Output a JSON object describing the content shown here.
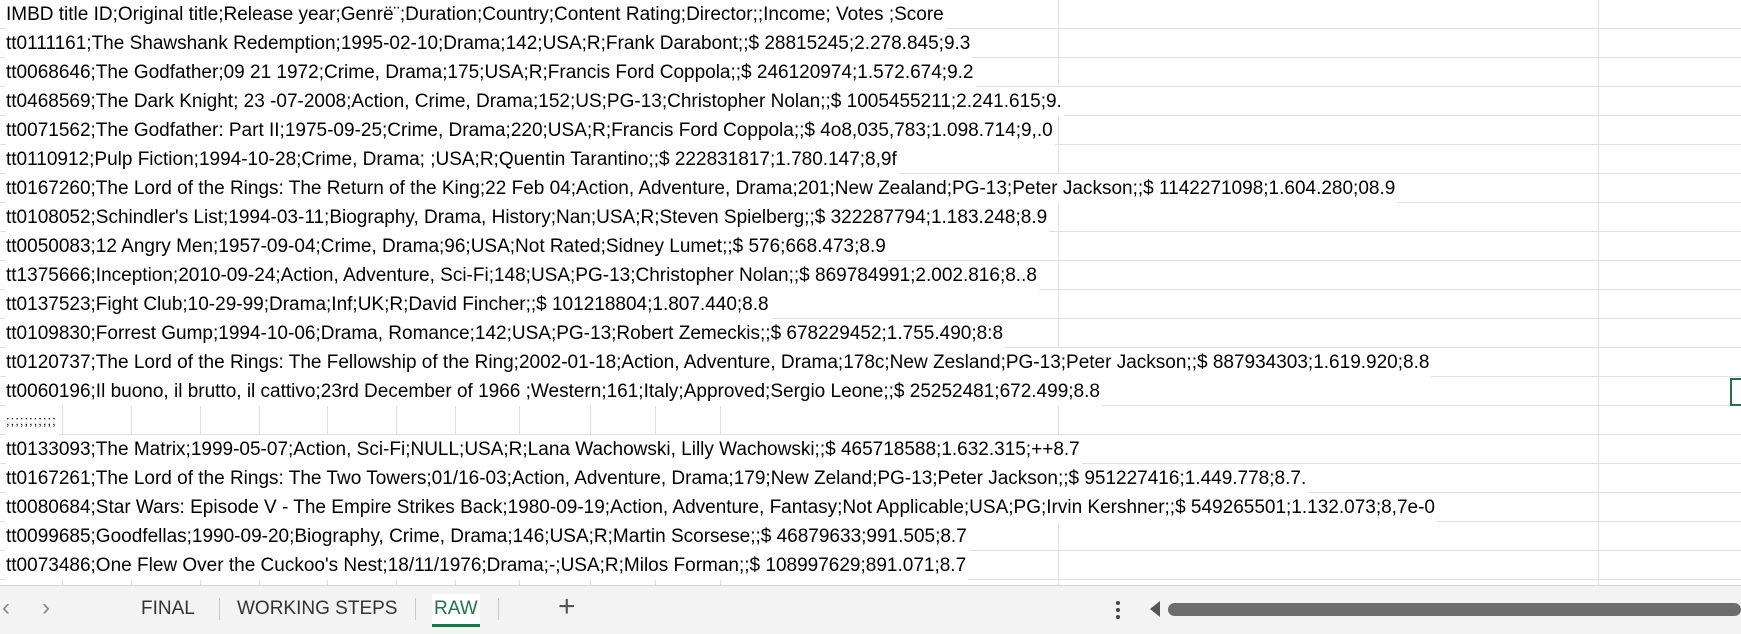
{
  "sheet": {
    "rows": [
      "IMBD title ID;Original title;Release year;Genrë¨;Duration;Country;Content Rating;Director;;Income; Votes ;Score",
      "tt0111161;The Shawshank Redemption;1995-02-10;Drama;142;USA;R;Frank Darabont;;$ 28815245;2.278.845;9.3",
      "tt0068646;The Godfather;09 21 1972;Crime, Drama;175;USA;R;Francis Ford Coppola;;$ 246120974;1.572.674;9.2",
      "tt0468569;The Dark Knight; 23 -07-2008;Action, Crime, Drama;152;US;PG-13;Christopher Nolan;;$ 1005455211;2.241.615;9.",
      "tt0071562;The Godfather: Part II;1975-09-25;Crime, Drama;220;USA;R;Francis Ford Coppola;;$ 4o8,035,783;1.098.714;9,.0",
      "tt0110912;Pulp Fiction;1994-10-28;Crime, Drama; ;USA;R;Quentin Tarantino;;$ 222831817;1.780.147;8,9f",
      "tt0167260;The Lord of the Rings: The Return of the King;22 Feb 04;Action, Adventure, Drama;201;New Zealand;PG-13;Peter Jackson;;$ 1142271098;1.604.280;08.9",
      "tt0108052;Schindler's List;1994-03-11;Biography, Drama, History;Nan;USA;R;Steven Spielberg;;$ 322287794;1.183.248;8.9",
      "tt0050083;12 Angry Men;1957-09-04;Crime, Drama;96;USA;Not Rated;Sidney Lumet;;$ 576;668.473;8.9",
      "tt1375666;Inception;2010-09-24;Action, Adventure, Sci-Fi;148;USA;PG-13;Christopher Nolan;;$ 869784991;2.002.816;8..8",
      "tt0137523;Fight Club;10-29-99;Drama;Inf;UK;R;David Fincher;;$ 101218804;1.807.440;8.8",
      "tt0109830;Forrest Gump;1994-10-06;Drama, Romance;142;USA;PG-13;Robert Zemeckis;;$ 678229452;1.755.490;8:8",
      "tt0120737;The Lord of the Rings: The Fellowship of the Ring;2002-01-18;Action, Adventure, Drama;178c;New Zesland;PG-13;Peter Jackson;;$ 887934303;1.619.920;8.8",
      "tt0060196;Il buono, il brutto, il cattivo;23rd December of 1966 ;Western;161;Italy;Approved;Sergio Leone;;$ 25252481;672.499;8.8",
      ";;;;;;;;;;;",
      "tt0133093;The Matrix;1999-05-07;Action, Sci-Fi;NULL;USA;R;Lana Wachowski, Lilly Wachowski;;$ 465718588;1.632.315;++8.7",
      "tt0167261;The Lord of the Rings: The Two Towers;01/16-03;Action, Adventure, Drama;179;New Zeland;PG-13;Peter Jackson;;$ 951227416;1.449.778;8.7.",
      "tt0080684;Star Wars: Episode V - The Empire Strikes Back;1980-09-19;Action, Adventure, Fantasy;Not Applicable;USA;PG;Irvin Kershner;;$ 549265501;1.132.073;8,7e-0",
      "tt0099685;Goodfellas;1990-09-20;Biography, Crime, Drama;146;USA;R;Martin Scorsese;;$ 46879633;991.505;8.7",
      "tt0073486;One Flew Over the Cuckoo's Nest;18/11/1976;Drama;-;USA;R;Milos Forman;;$ 108997629;891.071;8.7"
    ]
  },
  "tabs": {
    "final": "FINAL",
    "working_steps": "WORKING STEPS",
    "raw": "RAW",
    "active": "RAW"
  },
  "nav": {
    "prev_glyph": "‹",
    "next_glyph": "›",
    "add_glyph": "+"
  },
  "colors": {
    "accent": "#217346",
    "gridline": "#e1e1e1",
    "scrollbar": "#6d6d6d",
    "tabbar_bg": "#f3f3f3"
  }
}
